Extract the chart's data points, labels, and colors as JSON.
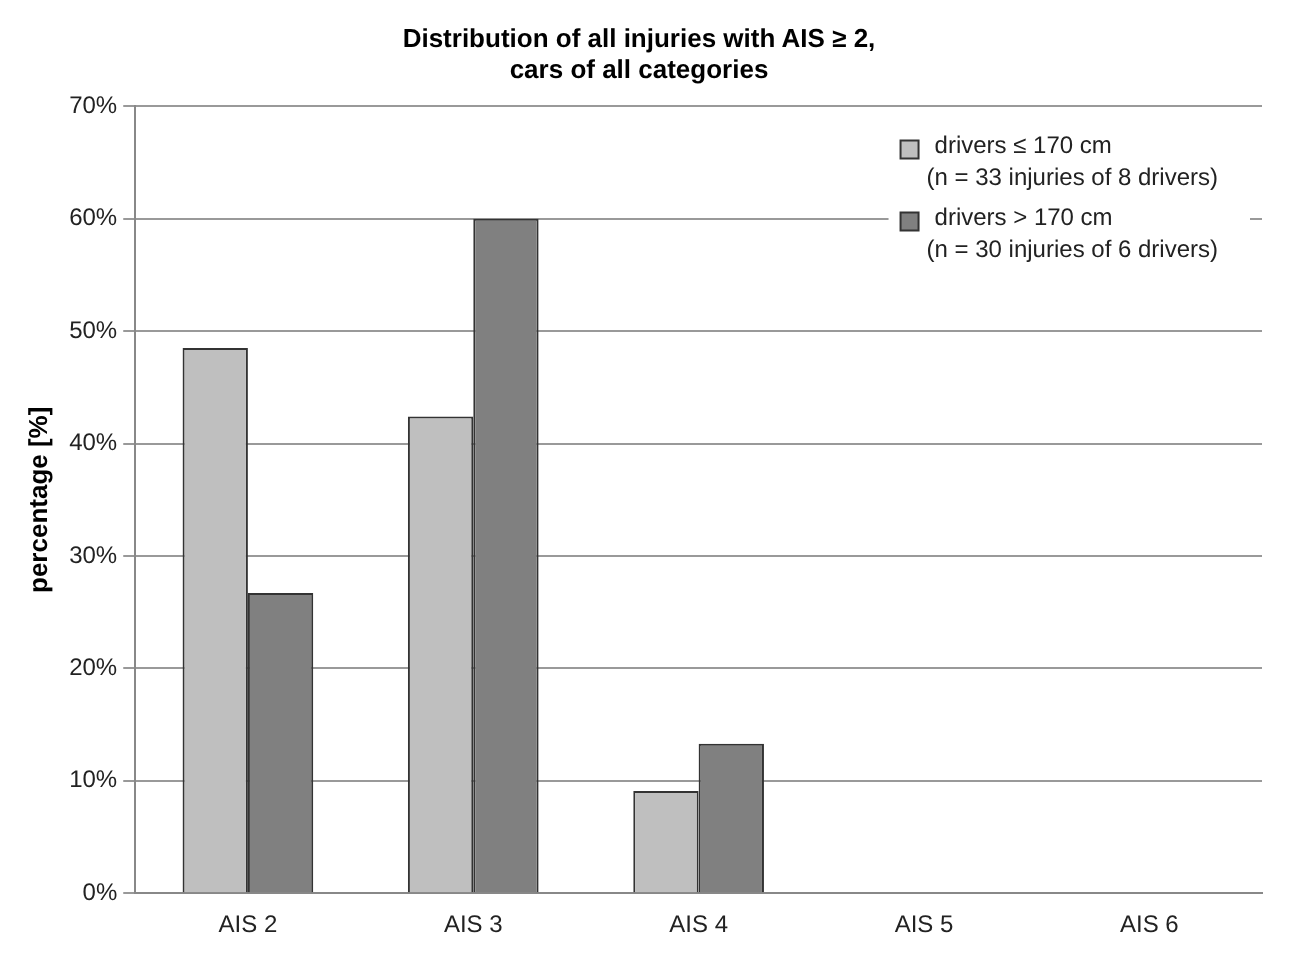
{
  "chart_data": {
    "type": "bar",
    "title": "Distribution of all injuries with AIS ≥ 2,\ncars of all categories",
    "ylabel": "percentage [%]",
    "categories": [
      "AIS 2",
      "AIS 3",
      "AIS 4",
      "AIS 5",
      "AIS 6"
    ],
    "series": [
      {
        "name": "drivers ≤ 170 cm\n(n = 33 injuries of 8 drivers)",
        "color": "#bfbfbf",
        "values": [
          48.5,
          42.4,
          9.1,
          0,
          0
        ]
      },
      {
        "name": "drivers > 170 cm\n(n = 30 injuries of 6 drivers)",
        "color": "#808080",
        "values": [
          26.7,
          60,
          13.3,
          0,
          0
        ]
      }
    ],
    "ylim": [
      0,
      70
    ],
    "yticks": [
      {
        "value": 0,
        "label": "0%"
      },
      {
        "value": 10,
        "label": "10%"
      },
      {
        "value": 20,
        "label": "20%"
      },
      {
        "value": 30,
        "label": "30%"
      },
      {
        "value": 40,
        "label": "40%"
      },
      {
        "value": 50,
        "label": "50%"
      },
      {
        "value": 60,
        "label": "60%"
      },
      {
        "value": 70,
        "label": "70%"
      }
    ],
    "grid": "y",
    "legend": "top right"
  }
}
